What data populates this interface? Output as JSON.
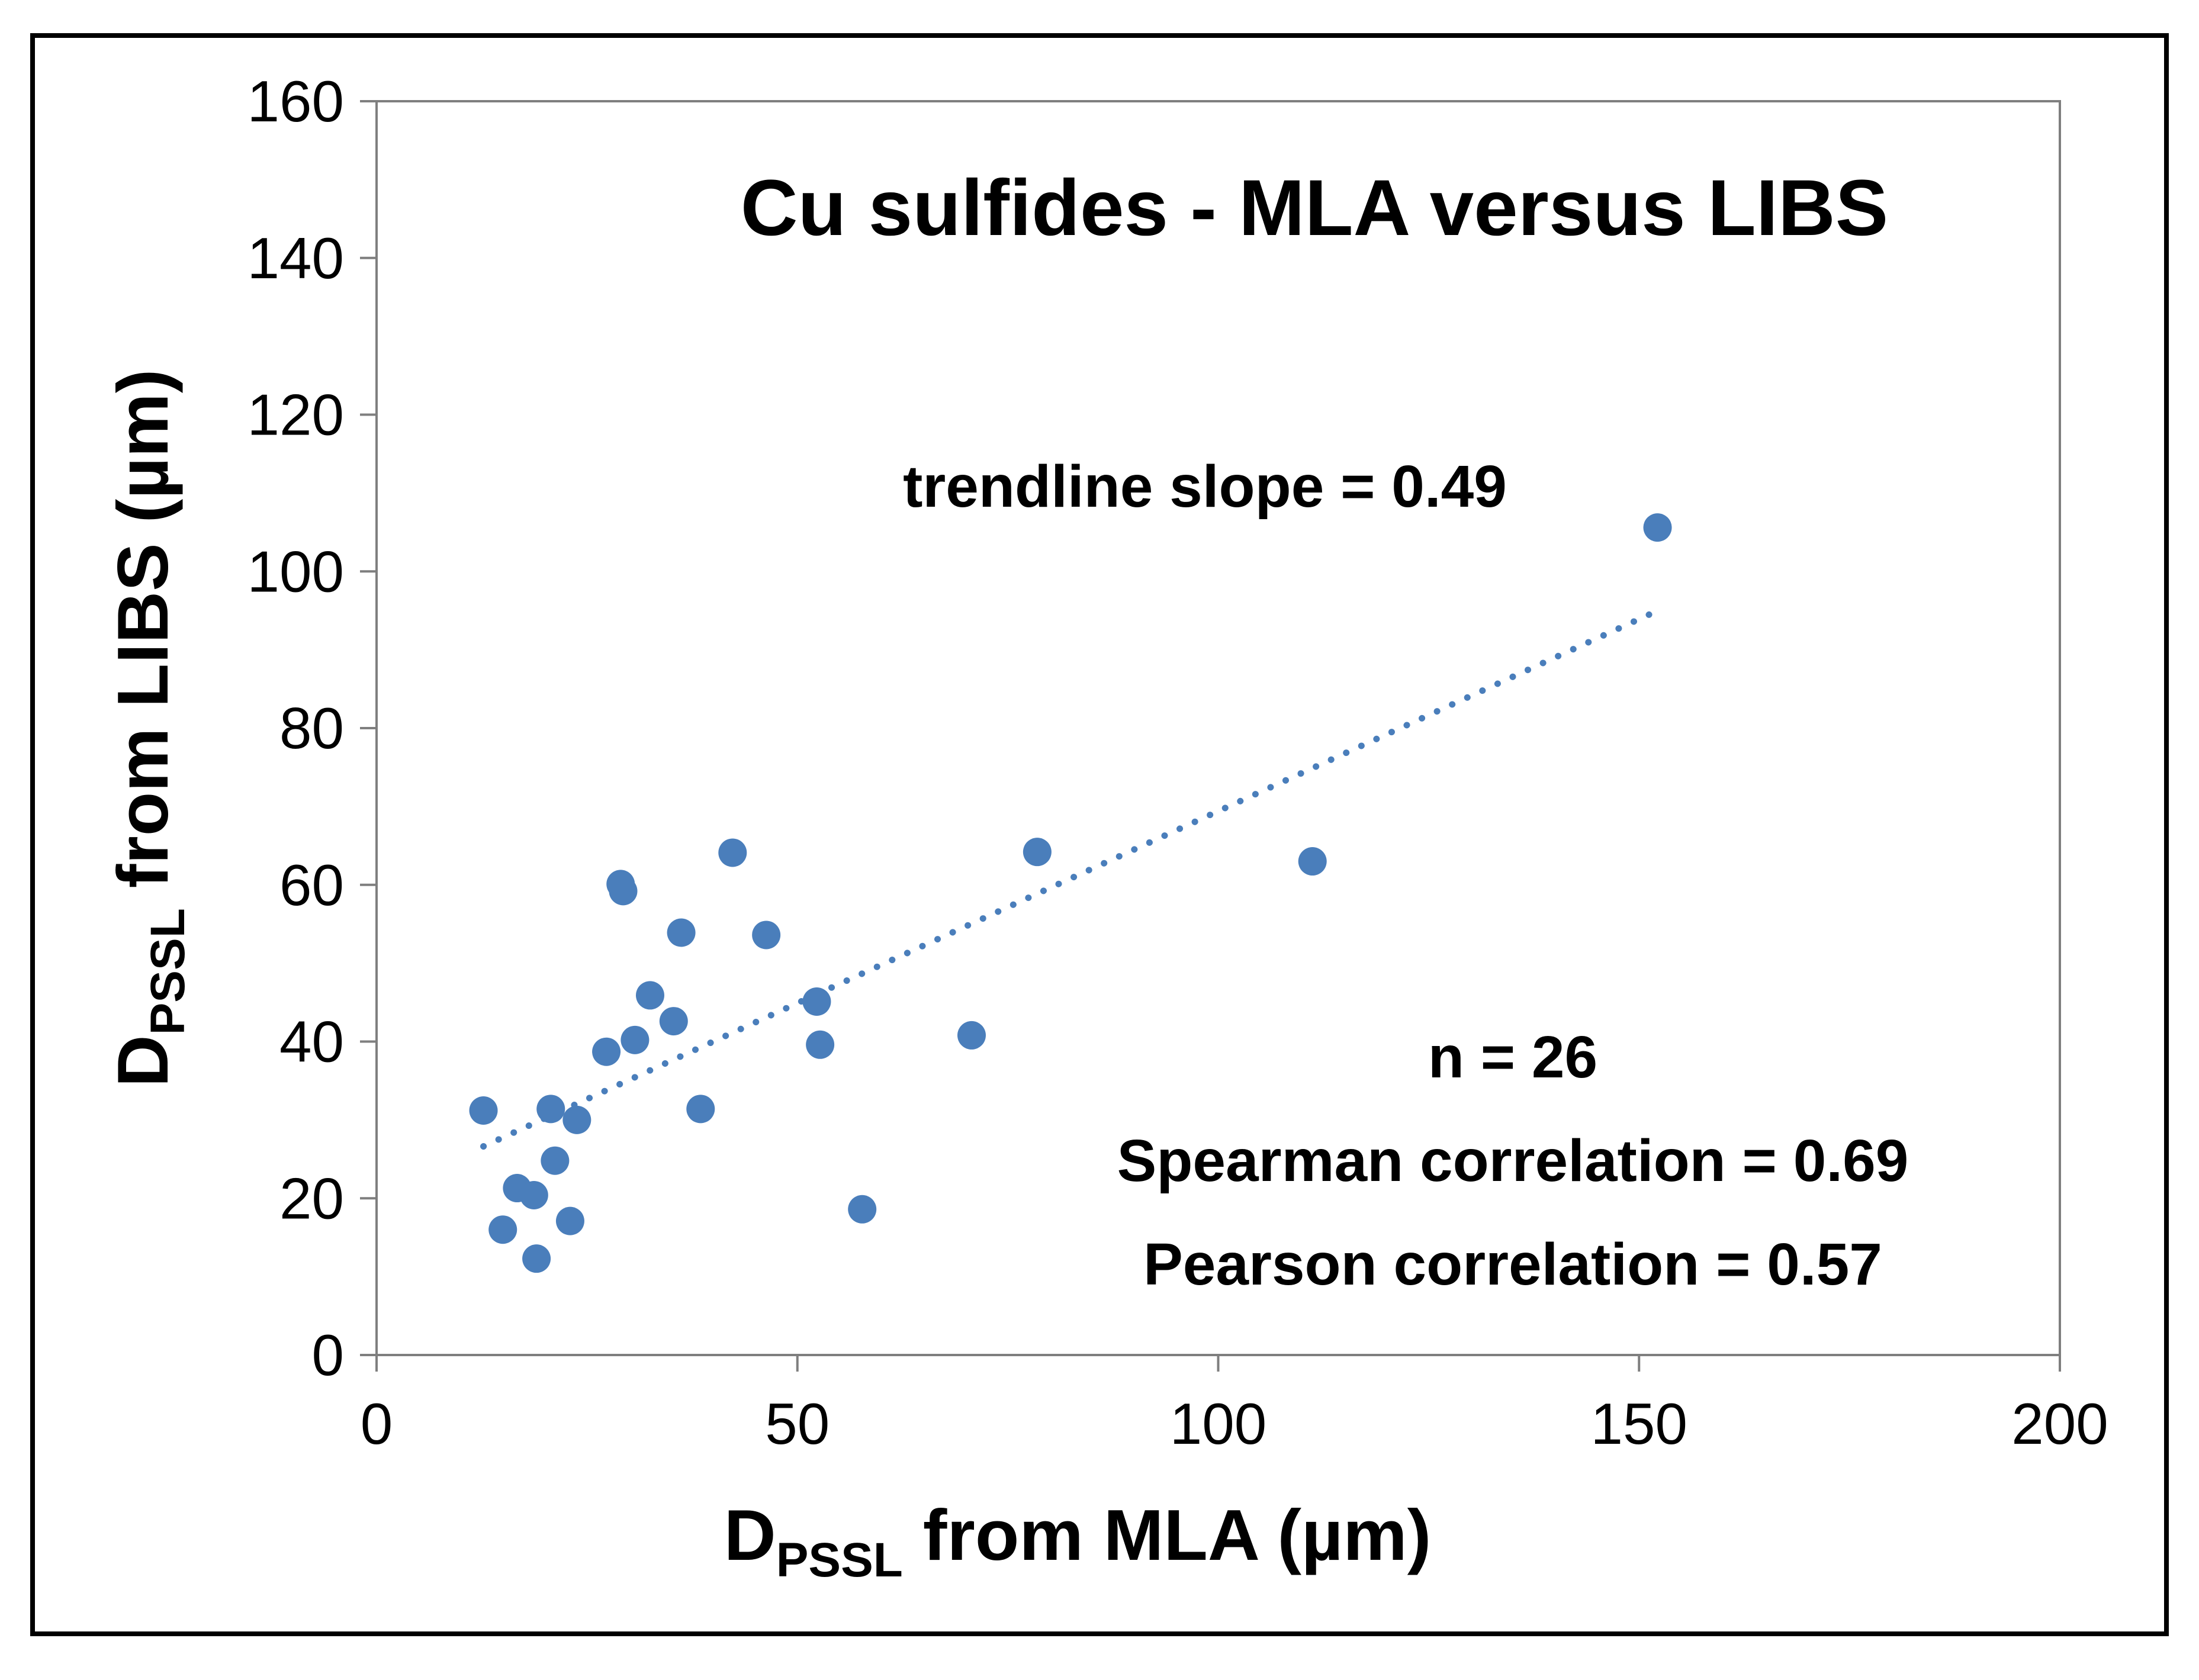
{
  "chart_data": {
    "type": "scatter",
    "title": "Cu sulfides - MLA versus LIBS",
    "xlabel": {
      "main": "D",
      "sub": "PSSL",
      "rest": " from MLA (µm)"
    },
    "ylabel": {
      "main": "D",
      "sub": "PSSL",
      "rest": " from LIBS (µm)"
    },
    "xlim": [
      0,
      200
    ],
    "ylim": [
      0,
      160
    ],
    "xticks": [
      "0",
      "50",
      "100",
      "150",
      "200"
    ],
    "yticks": [
      "0",
      "20",
      "40",
      "60",
      "80",
      "100",
      "120",
      "140",
      "160"
    ],
    "grid": false,
    "point_color": "#4a7ebb",
    "trendline_color": "#4a7ebb",
    "points": [
      [
        12.7,
        31.2
      ],
      [
        15.0,
        16.0
      ],
      [
        16.7,
        21.3
      ],
      [
        18.7,
        20.4
      ],
      [
        19.0,
        12.3
      ],
      [
        20.7,
        31.4
      ],
      [
        21.2,
        24.8
      ],
      [
        23.0,
        17.1
      ],
      [
        23.8,
        30.0
      ],
      [
        27.3,
        38.7
      ],
      [
        29.0,
        60.1
      ],
      [
        29.3,
        59.2
      ],
      [
        30.7,
        40.2
      ],
      [
        32.5,
        45.9
      ],
      [
        35.3,
        42.6
      ],
      [
        36.2,
        53.9
      ],
      [
        38.5,
        31.4
      ],
      [
        42.3,
        64.1
      ],
      [
        46.3,
        53.6
      ],
      [
        52.3,
        45.1
      ],
      [
        52.7,
        39.6
      ],
      [
        57.7,
        18.6
      ],
      [
        70.7,
        40.8
      ],
      [
        78.5,
        64.2
      ],
      [
        111.2,
        63.0
      ],
      [
        152.2,
        105.6
      ]
    ],
    "trendline": {
      "x_start": 12.7,
      "x_end": 152.2,
      "slope": 0.49,
      "intercept": 20.4
    },
    "annotations": {
      "slope": "trendline slope = 0.49",
      "n": "n = 26",
      "spearman": "Spearman correlation = 0.69",
      "pearson": "Pearson correlation = 0.57"
    }
  }
}
